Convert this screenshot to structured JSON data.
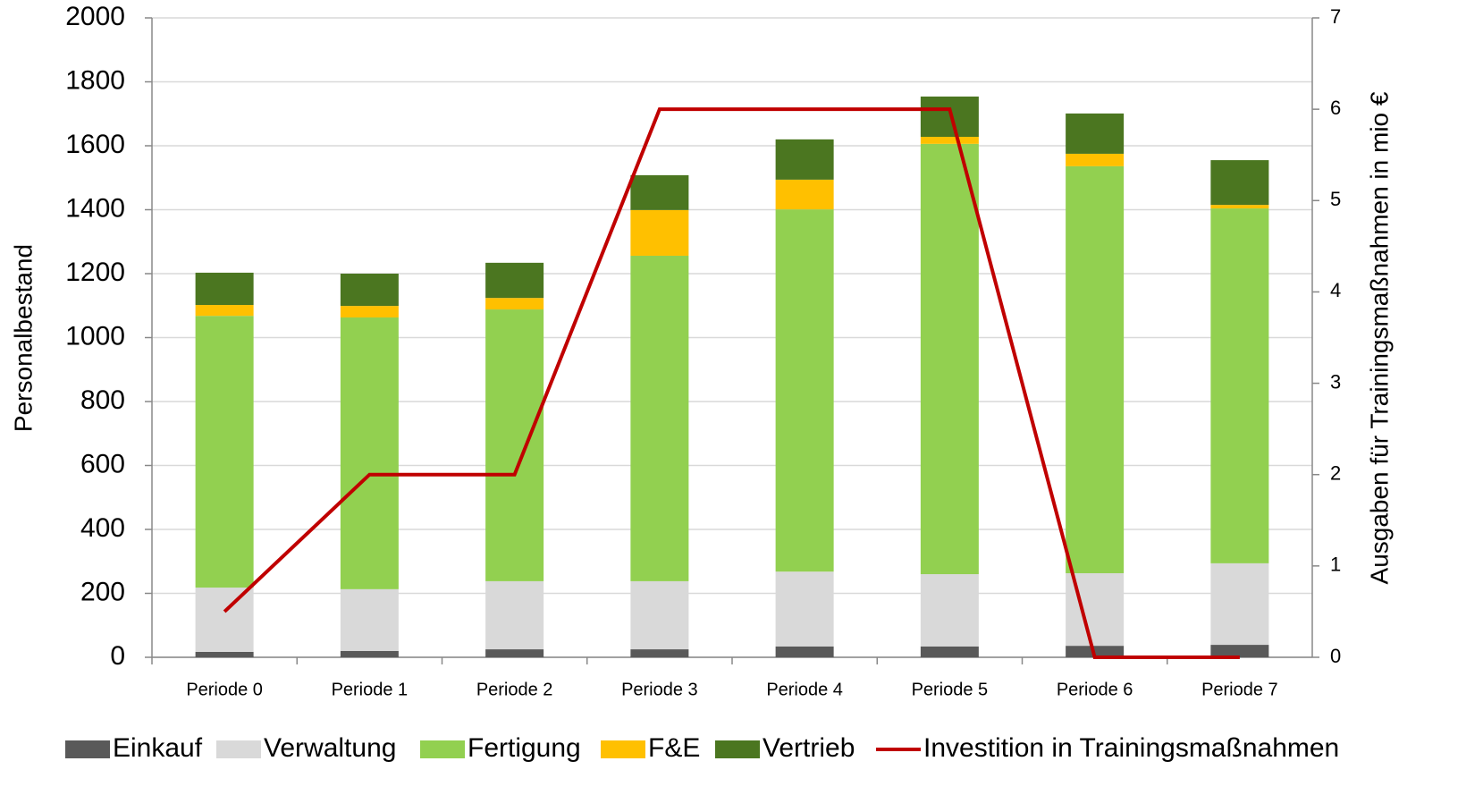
{
  "chart_data": {
    "type": "bar",
    "stacked": true,
    "ylabel": "Personalbestand",
    "y2label": "Ausgaben für Trainingsmaßnahmen in mio €",
    "categories": [
      "Periode 0",
      "Periode 1",
      "Periode 2",
      "Periode 3",
      "Periode 4",
      "Periode 5",
      "Periode 6",
      "Periode 7"
    ],
    "series": [
      {
        "name": "Einkauf",
        "color": "#595959",
        "values": [
          17,
          20,
          25,
          25,
          34,
          34,
          36,
          39
        ]
      },
      {
        "name": "Verwaltung",
        "color": "#d9d9d9",
        "values": [
          201,
          193,
          213,
          213,
          234,
          226,
          227,
          255
        ]
      },
      {
        "name": "Fertigung",
        "color": "#92d050",
        "values": [
          850,
          850,
          850,
          1018,
          1133,
          1346,
          1273,
          1110
        ]
      },
      {
        "name": "F&E",
        "color": "#ffc000",
        "values": [
          34,
          36,
          36,
          143,
          93,
          22,
          39,
          11
        ]
      },
      {
        "name": "Vertrieb",
        "color": "#4b7620",
        "values": [
          101,
          101,
          110,
          109,
          126,
          126,
          126,
          140
        ]
      },
      {
        "name": "Investition in Trainingsmaßnahmen",
        "color": "#c00000",
        "type": "line",
        "axis": "y2",
        "values": [
          0.5,
          2,
          2,
          6,
          6,
          6,
          0,
          0
        ]
      }
    ],
    "ylim": [
      0,
      2000
    ],
    "yticks": [
      0,
      200,
      400,
      600,
      800,
      1000,
      1200,
      1400,
      1600,
      1800,
      2000
    ],
    "y2lim": [
      0,
      7
    ],
    "y2ticks": [
      0,
      1,
      2,
      3,
      4,
      5,
      6,
      7
    ],
    "grid": true,
    "legend": "bottom"
  }
}
